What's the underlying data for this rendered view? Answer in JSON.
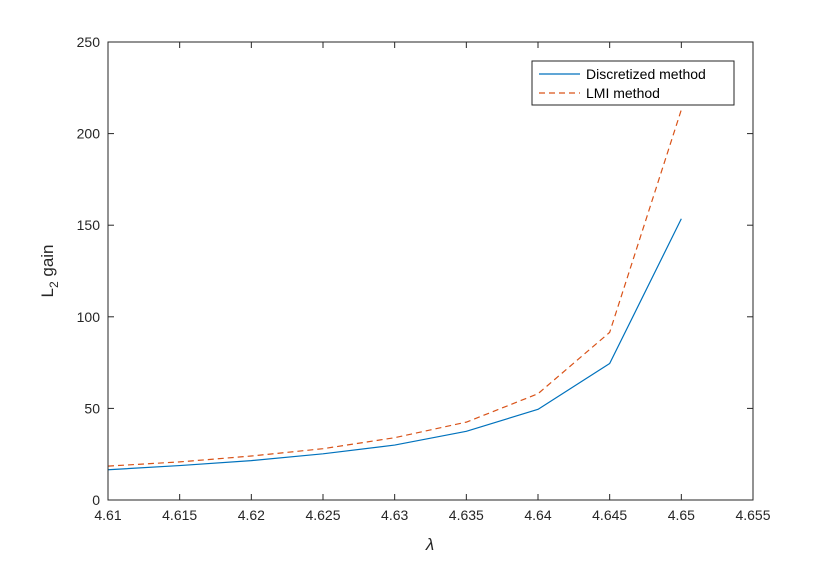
{
  "chart_data": {
    "type": "line",
    "xlabel": "λ",
    "ylabel": "L",
    "ylabel_subscript": "2",
    "ylabel_suffix": " gain",
    "xlim": [
      4.61,
      4.655
    ],
    "ylim": [
      0,
      250
    ],
    "xticks": [
      4.61,
      4.615,
      4.62,
      4.625,
      4.63,
      4.635,
      4.64,
      4.645,
      4.65,
      4.655
    ],
    "xtick_labels": [
      "4.61",
      "4.615",
      "4.62",
      "4.625",
      "4.63",
      "4.635",
      "4.64",
      "4.645",
      "4.65",
      "4.655"
    ],
    "yticks": [
      0,
      50,
      100,
      150,
      200,
      250
    ],
    "ytick_labels": [
      "0",
      "50",
      "100",
      "150",
      "200",
      "250"
    ],
    "grid": false,
    "legend_position": "top-right",
    "series": [
      {
        "name": "Discretized method",
        "color": "#0072BD",
        "dash": "solid",
        "x": [
          4.61,
          4.615,
          4.62,
          4.625,
          4.63,
          4.635,
          4.64,
          4.645,
          4.65
        ],
        "y": [
          16.5,
          18.8,
          21.5,
          25.2,
          30.0,
          37.5,
          49.5,
          74.5,
          153.5
        ]
      },
      {
        "name": "LMI method",
        "color": "#D95319",
        "dash": "dashed",
        "x": [
          4.61,
          4.615,
          4.62,
          4.625,
          4.63,
          4.635,
          4.64,
          4.645,
          4.65
        ],
        "y": [
          18.5,
          20.8,
          24.0,
          28.0,
          34.0,
          42.5,
          58.0,
          91.5,
          213.0
        ]
      }
    ]
  }
}
